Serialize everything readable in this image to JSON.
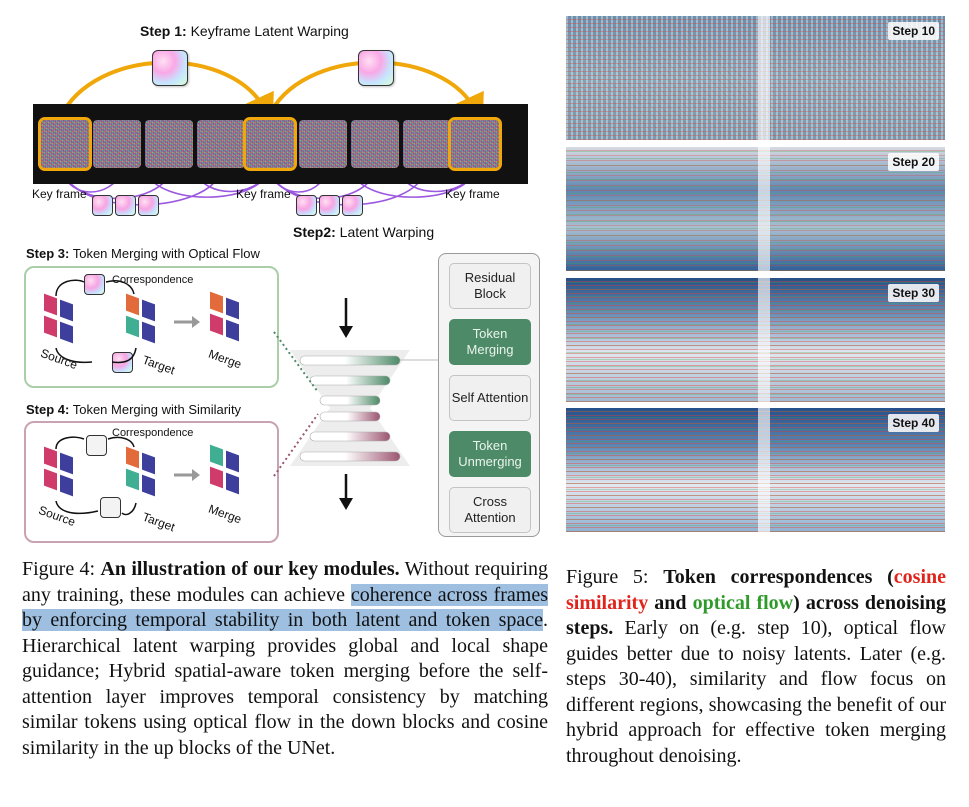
{
  "figure4": {
    "step1_bold": "Step 1:",
    "step1_rest": " Keyframe Latent Warping",
    "step2_bold": "Step2:",
    "step2_rest": " Latent Warping",
    "keyframe_label": "Key frame",
    "step3_bold": "Step 3:",
    "step3_rest": " Token Merging with Optical Flow",
    "step4_bold": "Step 4:",
    "step4_rest": " Token Merging with Similarity",
    "correspondence": "Correspondence",
    "source": "Source",
    "target": "Target",
    "merge": "Merge",
    "blocks": [
      "Residual Block",
      "Token Merging",
      "Self Attention",
      "Token Unmerging",
      "Cross Attention"
    ]
  },
  "figure5": {
    "steps": [
      "Step 10",
      "Step 20",
      "Step 30",
      "Step 40"
    ]
  },
  "caption4": {
    "prefix": "Figure 4: ",
    "bold": "An illustration of our key modules.",
    "text1": " Without requiring any training, these modules can achieve ",
    "highlight": "coherence across frames by enforcing temporal stability in both latent and token space",
    "text2": ". Hierarchical latent warping provides global and local shape guidance; Hybrid spatial-aware token merging before the self-attention layer improves temporal consistency by matching similar tokens using optical flow in the down blocks and cosine similarity in the up blocks of the UNet."
  },
  "caption5": {
    "prefix": "Figure 5: ",
    "bold_a": "Token correspondences (",
    "red": "cosine similarity",
    "bold_b": " and ",
    "green": "optical flow",
    "bold_c": ") across denoising steps.",
    "text": " Early on (e.g. step 10), optical flow guides better due to noisy latents. Later (e.g. steps 30-40), similarity and flow focus on different regions, showcasing the benefit of our hybrid approach for effective token merging throughout denoising."
  },
  "colors": {
    "keyframe_outline": "#f0a70a",
    "arrow_purple": "#9b57e0",
    "merge_green": "#4d8a68",
    "merge_mauve": "#9c5570",
    "cosine_red": "#e0241b",
    "flow_green": "#2e9a2a",
    "highlight": "#9ebfe0"
  }
}
